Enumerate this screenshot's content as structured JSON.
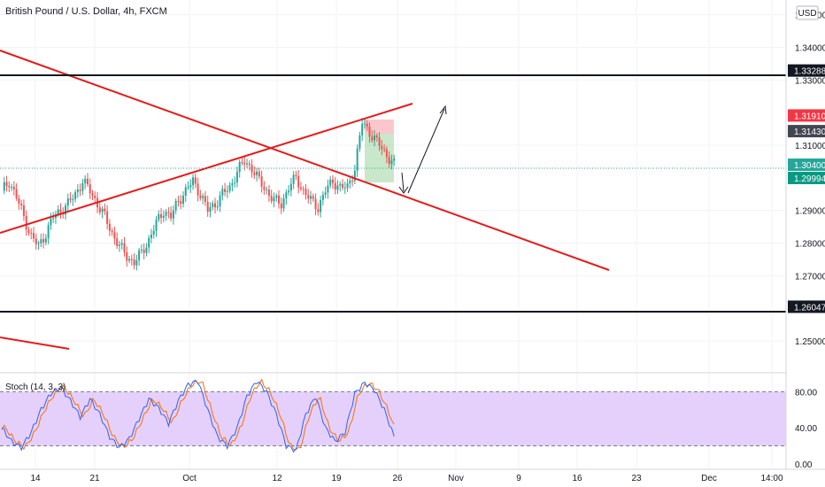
{
  "header": {
    "title": "British Pound / U.S. Dollar, 4h, FXCM",
    "currency_button": "USD"
  },
  "chart_data": {
    "type": "candlestick",
    "symbol": "GBPUSD",
    "timeframe": "4h",
    "ylim": [
      1.2405,
      1.3545
    ],
    "y_ticks": [
      "1.35000",
      "1.34000",
      "1.33000",
      "1.31000",
      "1.29000",
      "1.28000",
      "1.27000",
      "1.25000"
    ],
    "price_labels": [
      {
        "text": "1.33288",
        "value": 1.33288,
        "color": "#131722"
      },
      {
        "text": "1.31910",
        "value": 1.3191,
        "color": "#f23645"
      },
      {
        "text": "1.31430",
        "value": 1.3143,
        "color": "#434651"
      },
      {
        "text": "1.30400",
        "value": 1.304,
        "color": "#26a69a"
      },
      {
        "text": "1.29994",
        "value": 1.29994,
        "color": "#089981"
      },
      {
        "text": "1.26047",
        "value": 1.26047,
        "color": "#131722"
      }
    ],
    "x_ticks": [
      "14",
      "21",
      "Oct",
      "12",
      "19",
      "26",
      "Nov",
      "9",
      "16",
      "23",
      "Dec",
      "14:00"
    ],
    "colors": {
      "up": "#26a69a",
      "down": "#ef5350",
      "trendline": "#e41c1c",
      "hline": "#131722"
    },
    "close_path": [
      [
        0,
        1.296
      ],
      [
        3,
        1.299
      ],
      [
        6,
        1.294
      ],
      [
        9,
        1.288
      ],
      [
        12,
        1.282
      ],
      [
        15,
        1.279
      ],
      [
        18,
        1.283
      ],
      [
        21,
        1.288
      ],
      [
        24,
        1.29
      ],
      [
        27,
        1.292
      ],
      [
        30,
        1.295
      ],
      [
        33,
        1.299
      ],
      [
        36,
        1.296
      ],
      [
        39,
        1.292
      ],
      [
        42,
        1.288
      ],
      [
        45,
        1.283
      ],
      [
        48,
        1.279
      ],
      [
        51,
        1.276
      ],
      [
        54,
        1.274
      ],
      [
        57,
        1.277
      ],
      [
        60,
        1.281
      ],
      [
        63,
        1.286
      ],
      [
        66,
        1.29
      ],
      [
        69,
        1.288
      ],
      [
        72,
        1.293
      ],
      [
        75,
        1.296
      ],
      [
        78,
        1.299
      ],
      [
        81,
        1.295
      ],
      [
        84,
        1.29
      ],
      [
        87,
        1.292
      ],
      [
        90,
        1.295
      ],
      [
        93,
        1.297
      ],
      [
        96,
        1.302
      ],
      [
        99,
        1.305
      ],
      [
        102,
        1.303
      ],
      [
        105,
        1.299
      ],
      [
        108,
        1.296
      ],
      [
        111,
        1.293
      ],
      [
        114,
        1.292
      ],
      [
        117,
        1.297
      ],
      [
        120,
        1.3
      ],
      [
        123,
        1.296
      ],
      [
        126,
        1.293
      ],
      [
        129,
        1.291
      ],
      [
        132,
        1.296
      ],
      [
        135,
        1.299
      ],
      [
        138,
        1.297
      ],
      [
        141,
        1.297
      ],
      [
        144,
        1.303
      ],
      [
        147,
        1.317
      ],
      [
        150,
        1.314
      ],
      [
        153,
        1.311
      ],
      [
        156,
        1.308
      ],
      [
        159,
        1.305
      ],
      [
        160,
        1.304
      ]
    ],
    "stochastic": {
      "title": "Stoch (14, 3, 3)",
      "levels": [
        80,
        20
      ],
      "ylim": [
        -5,
        100
      ],
      "ticks": [
        "80.00",
        "40.00",
        "0.00"
      ],
      "k_color": "#2962ff",
      "d_color": "#ff6d00",
      "band_color": "#e1c8fa",
      "k_path": [
        [
          0,
          40
        ],
        [
          4,
          25
        ],
        [
          8,
          18
        ],
        [
          12,
          35
        ],
        [
          16,
          60
        ],
        [
          20,
          78
        ],
        [
          24,
          85
        ],
        [
          28,
          70
        ],
        [
          32,
          52
        ],
        [
          36,
          72
        ],
        [
          40,
          55
        ],
        [
          44,
          30
        ],
        [
          48,
          18
        ],
        [
          52,
          28
        ],
        [
          56,
          50
        ],
        [
          60,
          72
        ],
        [
          64,
          62
        ],
        [
          68,
          45
        ],
        [
          72,
          70
        ],
        [
          76,
          88
        ],
        [
          80,
          92
        ],
        [
          84,
          60
        ],
        [
          88,
          30
        ],
        [
          92,
          20
        ],
        [
          96,
          40
        ],
        [
          100,
          75
        ],
        [
          104,
          92
        ],
        [
          108,
          80
        ],
        [
          112,
          55
        ],
        [
          116,
          20
        ],
        [
          120,
          15
        ],
        [
          124,
          55
        ],
        [
          128,
          75
        ],
        [
          132,
          40
        ],
        [
          136,
          25
        ],
        [
          140,
          35
        ],
        [
          144,
          78
        ],
        [
          148,
          90
        ],
        [
          152,
          82
        ],
        [
          156,
          60
        ],
        [
          160,
          30
        ]
      ]
    }
  }
}
